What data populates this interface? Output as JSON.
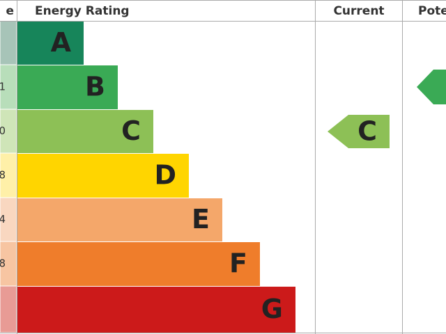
{
  "header": {
    "score": "e",
    "rating": "Energy Rating",
    "current": "Current",
    "potential": "Pote"
  },
  "bands": [
    {
      "letter": "A"
    },
    {
      "letter": "B",
      "score": "1"
    },
    {
      "letter": "C",
      "score": "0"
    },
    {
      "letter": "D",
      "score": "8"
    },
    {
      "letter": "E",
      "score": "4"
    },
    {
      "letter": "F",
      "score": "8"
    },
    {
      "letter": "G"
    }
  ],
  "current": {
    "letter": "C"
  }
}
